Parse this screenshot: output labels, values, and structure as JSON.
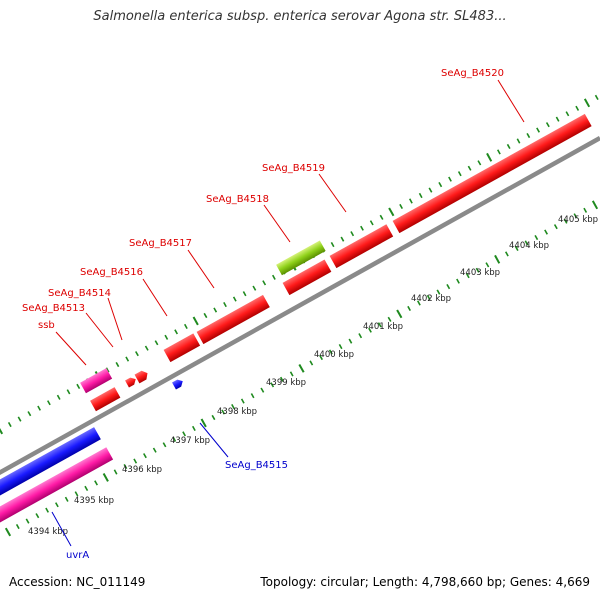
{
  "title": "Salmonella enterica subsp. enterica serovar Agona str. SL483...",
  "footer": {
    "accession": "Accession: NC_011149",
    "stats": "Topology: circular; Length: 4,798,660 bp; Genes: 4,669"
  },
  "colors": {
    "forward_gene": "#ff1a1a",
    "reverse_gene": "#1a1aff",
    "rna_gene": "#ff1aa6",
    "other_feature": "#8fd11a",
    "backbone": "#8a8a8a",
    "tick": "#1f8a1f",
    "forward_label": "#dd0000",
    "reverse_label": "#0000cc"
  },
  "scale_labels": [
    "4394 kbp",
    "4395 kbp",
    "4396 kbp",
    "4397 kbp",
    "4398 kbp",
    "4399 kbp",
    "4400 kbp",
    "4401 kbp",
    "4402 kbp",
    "4403 kbp",
    "4404 kbp",
    "4405 kbp"
  ],
  "gene_labels": [
    "uvrA",
    "ssb",
    "SeAg_B4513",
    "SeAg_B4514",
    "SeAg_B4515",
    "SeAg_B4516",
    "SeAg_B4517",
    "SeAg_B4518",
    "SeAg_B4519",
    "SeAg_B4520"
  ]
}
